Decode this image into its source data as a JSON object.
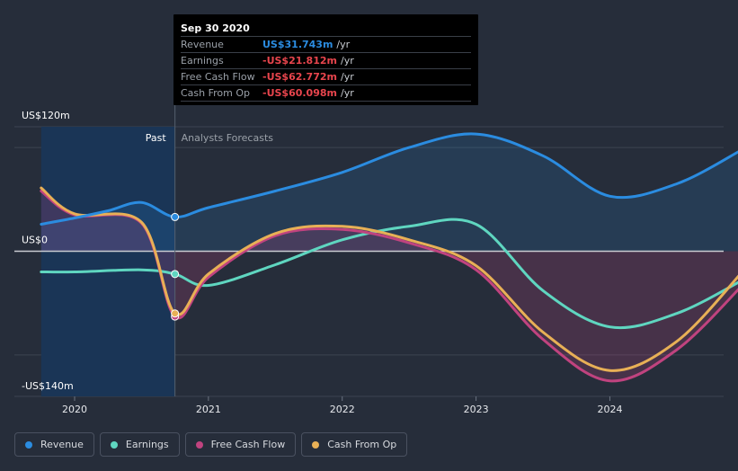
{
  "tooltip": {
    "date": "Sep 30 2020",
    "rows": [
      {
        "label": "Revenue",
        "value": "US$31.743m",
        "unit": "/yr",
        "color": "#2b8ce0"
      },
      {
        "label": "Earnings",
        "value": "-US$21.812m",
        "unit": "/yr",
        "color": "#e8454d"
      },
      {
        "label": "Free Cash Flow",
        "value": "-US$62.772m",
        "unit": "/yr",
        "color": "#e8454d"
      },
      {
        "label": "Cash From Op",
        "value": "-US$60.098m",
        "unit": "/yr",
        "color": "#e8454d"
      }
    ]
  },
  "legend": [
    {
      "label": "Revenue",
      "color": "#2b8ce0"
    },
    {
      "label": "Earnings",
      "color": "#5fd6c0"
    },
    {
      "label": "Free Cash Flow",
      "color": "#c0437f"
    },
    {
      "label": "Cash From Op",
      "color": "#e8b056"
    }
  ],
  "chart_data": {
    "type": "line",
    "y_unit": "US$ millions",
    "ylim": [
      -140,
      120
    ],
    "y_axis_labels": {
      "top": "US$120m",
      "zero": "US$0",
      "bottom": "-US$140m"
    },
    "x_ticks": [
      {
        "label": "2020",
        "x": 2020.0
      },
      {
        "label": "2021",
        "x": 2021.0
      },
      {
        "label": "2022",
        "x": 2022.0
      },
      {
        "label": "2023",
        "x": 2023.0
      },
      {
        "label": "2024",
        "x": 2024.0
      }
    ],
    "xlim": [
      2019.55,
      2024.85
    ],
    "past_end": 2020.75,
    "past_label": "Past",
    "forecast_label": "Analysts Forecasts",
    "series": [
      {
        "name": "Revenue",
        "color": "#2b8ce0",
        "points": [
          [
            2019.75,
            26
          ],
          [
            2020.0,
            32
          ],
          [
            2020.25,
            39
          ],
          [
            2020.5,
            47
          ],
          [
            2020.75,
            33
          ],
          [
            2021.0,
            42
          ],
          [
            2021.5,
            58
          ],
          [
            2022.0,
            76
          ],
          [
            2022.5,
            100
          ],
          [
            2023.0,
            113
          ],
          [
            2023.5,
            92
          ],
          [
            2024.0,
            53
          ],
          [
            2024.5,
            65
          ],
          [
            2024.99,
            98
          ]
        ]
      },
      {
        "name": "Earnings",
        "color": "#5fd6c0",
        "points": [
          [
            2019.75,
            -20
          ],
          [
            2020.0,
            -20
          ],
          [
            2020.5,
            -18
          ],
          [
            2020.75,
            -22
          ],
          [
            2021.0,
            -33
          ],
          [
            2021.5,
            -13
          ],
          [
            2022.0,
            11
          ],
          [
            2022.5,
            24
          ],
          [
            2023.0,
            26
          ],
          [
            2023.5,
            -38
          ],
          [
            2024.0,
            -73
          ],
          [
            2024.5,
            -60
          ],
          [
            2024.99,
            -28
          ]
        ]
      },
      {
        "name": "Free Cash Flow",
        "color": "#c0437f",
        "points": [
          [
            2019.75,
            58
          ],
          [
            2020.0,
            35
          ],
          [
            2020.5,
            27
          ],
          [
            2020.75,
            -63
          ],
          [
            2021.0,
            -25
          ],
          [
            2021.5,
            15
          ],
          [
            2022.0,
            21
          ],
          [
            2022.5,
            8
          ],
          [
            2023.0,
            -18
          ],
          [
            2023.5,
            -85
          ],
          [
            2024.0,
            -125
          ],
          [
            2024.5,
            -95
          ],
          [
            2024.99,
            -33
          ]
        ]
      },
      {
        "name": "Cash From Op",
        "color": "#e8b056",
        "points": [
          [
            2019.75,
            61
          ],
          [
            2020.0,
            36
          ],
          [
            2020.5,
            28
          ],
          [
            2020.75,
            -60
          ],
          [
            2021.0,
            -22
          ],
          [
            2021.5,
            17
          ],
          [
            2022.0,
            24
          ],
          [
            2022.5,
            11
          ],
          [
            2023.0,
            -14
          ],
          [
            2023.5,
            -78
          ],
          [
            2024.0,
            -115
          ],
          [
            2024.5,
            -87
          ],
          [
            2024.99,
            -20
          ]
        ]
      }
    ]
  }
}
